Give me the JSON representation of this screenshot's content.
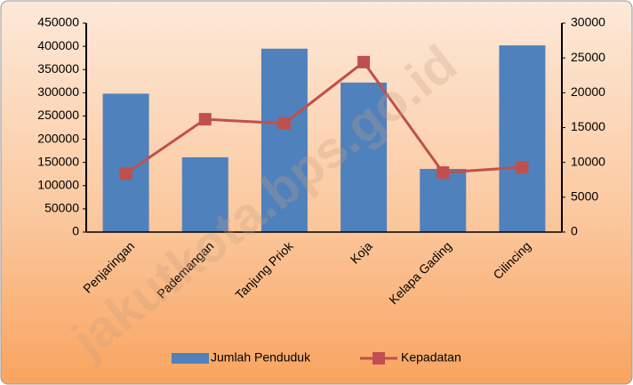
{
  "chart_data": {
    "type": "bar_line",
    "categories": [
      "Penjaringan",
      "Pademangan",
      "Tanjung Priok",
      "Koja",
      "Kelapa Gading",
      "Cilincing"
    ],
    "series": [
      {
        "name": "Jumlah Penduduk",
        "color": "#4f81bd",
        "type": "bar",
        "values": [
          298000,
          161000,
          395000,
          322000,
          136000,
          402000
        ]
      },
      {
        "name": "Kepadatan",
        "color": "#c0504d",
        "type": "line",
        "axis": "y2",
        "values": [
          8400,
          16200,
          15600,
          24400,
          8550,
          9300
        ]
      }
    ],
    "ylim": [
      0,
      450000
    ],
    "yticks": [
      0,
      50000,
      100000,
      150000,
      200000,
      250000,
      300000,
      350000,
      400000,
      450000
    ],
    "y2lim": [
      0,
      30000
    ],
    "y2ticks": [
      0,
      5000,
      10000,
      15000,
      20000,
      25000,
      30000
    ],
    "legend": "bottom",
    "watermark": "jakutkota.bps.go.id"
  }
}
